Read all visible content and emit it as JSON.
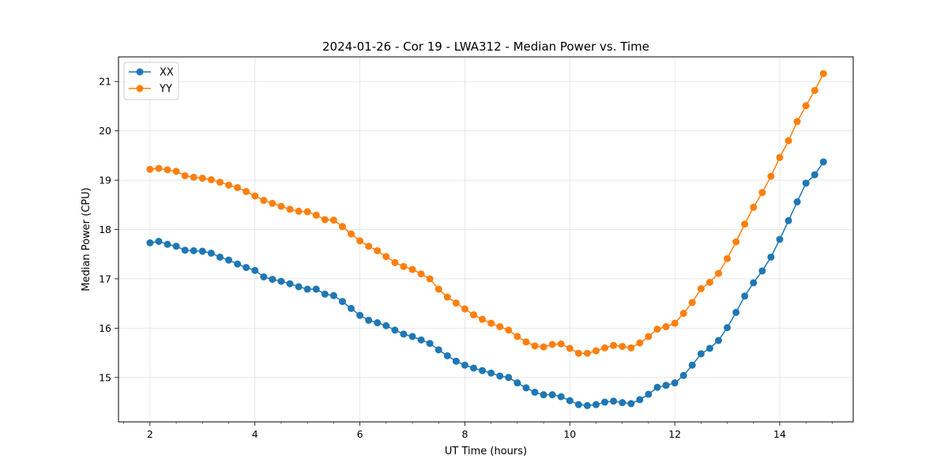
{
  "chart_data": {
    "type": "line",
    "title": "2024-01-26 - Cor 19 - LWA312 - Median Power vs. Time",
    "xlabel": "UT Time (hours)",
    "ylabel": "Median Power (CPU)",
    "xlim": [
      1.4,
      15.4
    ],
    "ylim": [
      14.1,
      21.5
    ],
    "xticks": [
      2,
      4,
      6,
      8,
      10,
      12,
      14
    ],
    "yticks": [
      15,
      16,
      17,
      18,
      19,
      20,
      21
    ],
    "xtick_labels": [
      "2",
      "4",
      "6",
      "8",
      "10",
      "12",
      "14"
    ],
    "ytick_labels": [
      "15",
      "16",
      "17",
      "18",
      "19",
      "20",
      "21"
    ],
    "grid": true,
    "legend_position": "top-left",
    "x": [
      2.0,
      2.167,
      2.333,
      2.5,
      2.667,
      2.833,
      3.0,
      3.167,
      3.333,
      3.5,
      3.667,
      3.833,
      4.0,
      4.167,
      4.333,
      4.5,
      4.667,
      4.833,
      5.0,
      5.167,
      5.333,
      5.5,
      5.667,
      5.833,
      6.0,
      6.167,
      6.333,
      6.5,
      6.667,
      6.833,
      7.0,
      7.167,
      7.333,
      7.5,
      7.667,
      7.833,
      8.0,
      8.167,
      8.333,
      8.5,
      8.667,
      8.833,
      9.0,
      9.167,
      9.333,
      9.5,
      9.667,
      9.833,
      10.0,
      10.167,
      10.333,
      10.5,
      10.667,
      10.833,
      11.0,
      11.167,
      11.333,
      11.5,
      11.667,
      11.833,
      12.0,
      12.167,
      12.333,
      12.5,
      12.667,
      12.833,
      13.0,
      13.167,
      13.333,
      13.5,
      13.667,
      13.833,
      14.0,
      14.167,
      14.333,
      14.5,
      14.667,
      14.833
    ],
    "series": [
      {
        "name": "XX",
        "color": "#1f77b4",
        "values": [
          17.73,
          17.76,
          17.7,
          17.66,
          17.58,
          17.57,
          17.56,
          17.52,
          17.44,
          17.38,
          17.3,
          17.23,
          17.17,
          17.04,
          16.99,
          16.95,
          16.9,
          16.84,
          16.79,
          16.79,
          16.69,
          16.66,
          16.54,
          16.4,
          16.26,
          16.16,
          16.11,
          16.05,
          15.96,
          15.88,
          15.83,
          15.76,
          15.69,
          15.56,
          15.44,
          15.33,
          15.25,
          15.19,
          15.14,
          15.09,
          15.03,
          15.0,
          14.89,
          14.79,
          14.7,
          14.65,
          14.65,
          14.61,
          14.53,
          14.45,
          14.43,
          14.45,
          14.5,
          14.52,
          14.49,
          14.47,
          14.55,
          14.66,
          14.8,
          14.84,
          14.89,
          15.04,
          15.25,
          15.48,
          15.59,
          15.75,
          16.01,
          16.32,
          16.65,
          16.92,
          17.16,
          17.44,
          17.8,
          18.18,
          18.56,
          18.94,
          19.11,
          19.37
        ]
      },
      {
        "name": "YY",
        "color": "#ff7f0e",
        "values": [
          19.22,
          19.24,
          19.21,
          19.18,
          19.09,
          19.06,
          19.04,
          19.01,
          18.96,
          18.9,
          18.85,
          18.77,
          18.68,
          18.59,
          18.53,
          18.47,
          18.41,
          18.37,
          18.36,
          18.29,
          18.2,
          18.19,
          18.06,
          17.91,
          17.77,
          17.66,
          17.57,
          17.45,
          17.33,
          17.25,
          17.19,
          17.1,
          17.0,
          16.79,
          16.63,
          16.51,
          16.39,
          16.27,
          16.18,
          16.1,
          16.03,
          15.96,
          15.83,
          15.72,
          15.64,
          15.62,
          15.67,
          15.68,
          15.59,
          15.49,
          15.49,
          15.54,
          15.6,
          15.65,
          15.63,
          15.6,
          15.7,
          15.83,
          15.98,
          16.03,
          16.1,
          16.3,
          16.52,
          16.8,
          16.93,
          17.11,
          17.41,
          17.75,
          18.11,
          18.45,
          18.75,
          19.08,
          19.46,
          19.8,
          20.19,
          20.51,
          20.82,
          21.16
        ]
      }
    ]
  }
}
